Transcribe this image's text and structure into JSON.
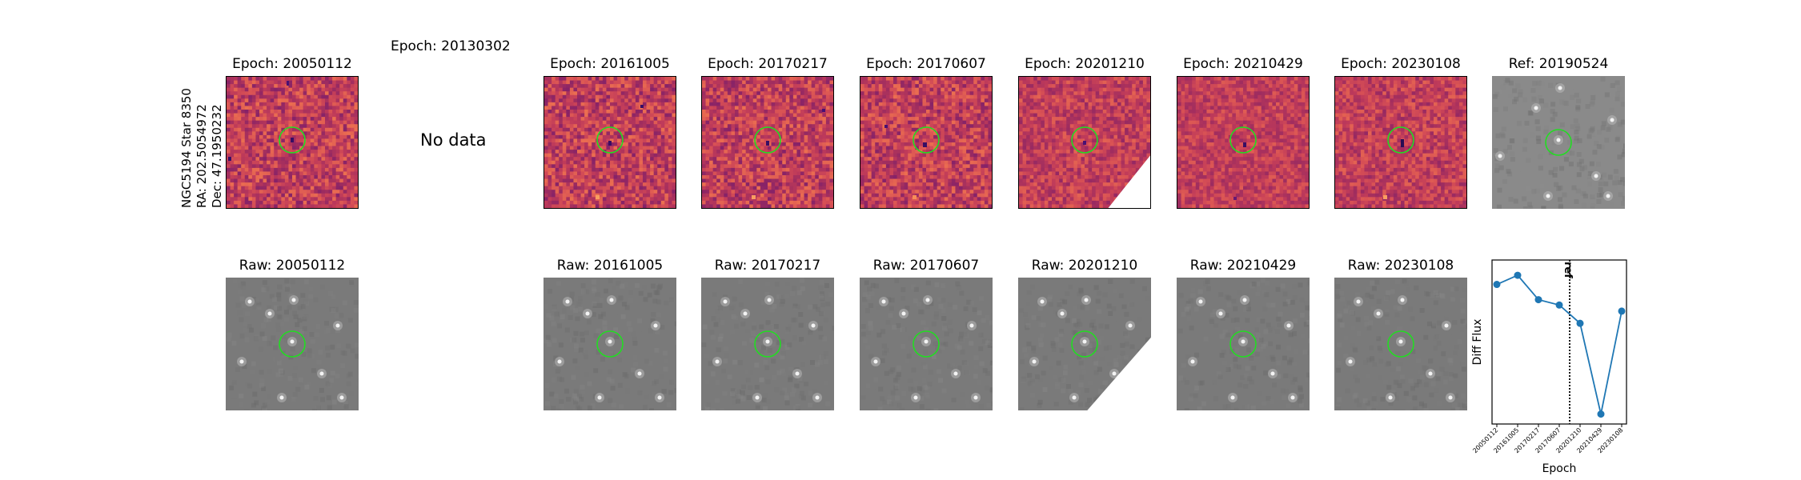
{
  "side_label": {
    "line1": "NGC5194 Star 8350",
    "line2": "RA: 202.5054972",
    "line3": "Dec: 47.1950232"
  },
  "nodata_title": "Epoch: 20130302",
  "nodata_text": "No data",
  "diff_titles": {
    "e1": "Epoch: 20050112",
    "e2": "Epoch: 20161005",
    "e3": "Epoch: 20170217",
    "e4": "Epoch: 20170607",
    "e5": "Epoch: 20201210",
    "e6": "Epoch: 20210429",
    "e7": "Epoch: 20230108",
    "ref": "Ref: 20190524"
  },
  "raw_titles": {
    "e1": "Raw: 20050112",
    "e2": "Raw: 20161005",
    "e3": "Raw: 20170217",
    "e4": "Raw: 20170607",
    "e5": "Raw: 20201210",
    "e6": "Raw: 20210429",
    "e7": "Raw: 20230108"
  },
  "colors": {
    "circle": "#22dd22",
    "line": "#1f77b4",
    "magma_mid": "#c0457a"
  },
  "chart_data": {
    "type": "line",
    "xlabel": "Epoch",
    "ylabel": "Diff Flux",
    "categories": [
      "20050112",
      "20161005",
      "20170217",
      "20170607",
      "20201210",
      "20210429",
      "20230108"
    ],
    "values": [
      0.88,
      1.0,
      0.68,
      0.61,
      0.37,
      -0.82,
      0.53
    ],
    "ylim": [
      -0.95,
      1.2
    ],
    "ref_marker": {
      "label": "ref",
      "position": "between 20170607 and 20201210"
    },
    "grid": false
  }
}
